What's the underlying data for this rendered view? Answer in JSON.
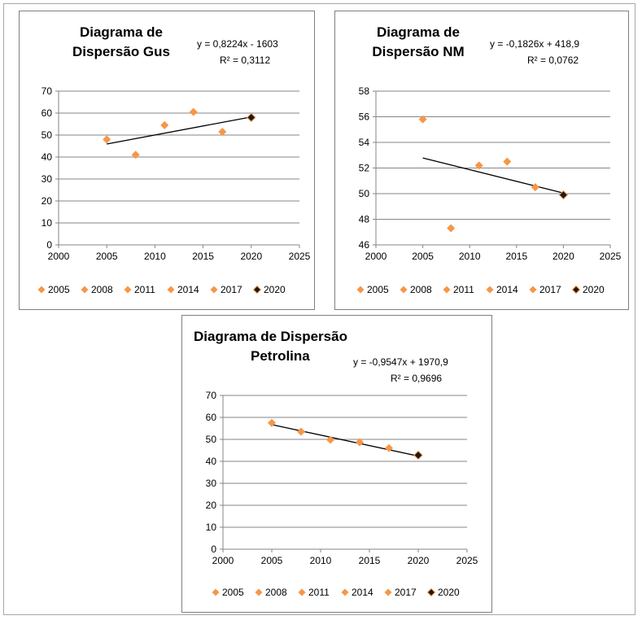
{
  "colors": {
    "orange": "#F79646",
    "dark": "#1a1a1a",
    "grid": "#868686",
    "trend": "#000000"
  },
  "chart_data": [
    {
      "type": "scatter",
      "title_line1": "Diagrama de",
      "title_line2": "Dispersão Gus",
      "equation": "y = 0,8224x - 1603",
      "r2": "R² = 0,3112",
      "x": [
        2005,
        2008,
        2011,
        2014,
        2017,
        2020
      ],
      "y": [
        48,
        41,
        54.5,
        60.5,
        51.5,
        58
      ],
      "legend": [
        "2005",
        "2008",
        "2011",
        "2014",
        "2017",
        "2020"
      ],
      "trendline": {
        "slope": 0.8224,
        "intercept": -1603,
        "x_range": [
          2005,
          2020
        ]
      },
      "xlim": [
        2000,
        2025
      ],
      "ylim": [
        0,
        70
      ],
      "xticks": [
        "2000",
        "2005",
        "2010",
        "2015",
        "2020",
        "2025"
      ],
      "yticks": [
        "0",
        "10",
        "20",
        "30",
        "40",
        "50",
        "60",
        "70"
      ],
      "grid": "horizontal",
      "legend_position": "bottom"
    },
    {
      "type": "scatter",
      "title_line1": "Diagrama de",
      "title_line2": "Dispersão NM",
      "equation": "y = -0,1826x + 418,9",
      "r2": "R² = 0,0762",
      "x": [
        2005,
        2008,
        2011,
        2014,
        2017,
        2020
      ],
      "y": [
        55.8,
        47.3,
        52.2,
        52.5,
        50.5,
        49.9
      ],
      "legend": [
        "2005",
        "2008",
        "2011",
        "2014",
        "2017",
        "2020"
      ],
      "trendline": {
        "slope": -0.1826,
        "intercept": 418.9,
        "x_range": [
          2005,
          2020
        ]
      },
      "xlim": [
        2000,
        2025
      ],
      "ylim": [
        46,
        58
      ],
      "xticks": [
        "2000",
        "2005",
        "2010",
        "2015",
        "2020",
        "2025"
      ],
      "yticks": [
        "46",
        "48",
        "50",
        "52",
        "54",
        "56",
        "58"
      ],
      "grid": "horizontal",
      "legend_position": "bottom"
    },
    {
      "type": "scatter",
      "title_line1": "Diagrama de Dispersão",
      "title_line2": "Petrolina",
      "equation": "y = -0,9547x + 1970,9",
      "r2": "R² = 0,9696",
      "x": [
        2005,
        2008,
        2011,
        2014,
        2017,
        2020
      ],
      "y": [
        57.5,
        53.5,
        49.8,
        48.7,
        46,
        42.8
      ],
      "legend": [
        "2005",
        "2008",
        "2011",
        "2014",
        "2017",
        "2020"
      ],
      "trendline": {
        "slope": -0.9547,
        "intercept": 1970.9,
        "x_range": [
          2005,
          2020
        ]
      },
      "xlim": [
        2000,
        2025
      ],
      "ylim": [
        0,
        70
      ],
      "xticks": [
        "2000",
        "2005",
        "2010",
        "2015",
        "2020",
        "2025"
      ],
      "yticks": [
        "0",
        "10",
        "20",
        "30",
        "40",
        "50",
        "60",
        "70"
      ],
      "grid": "horizontal",
      "legend_position": "bottom"
    }
  ]
}
